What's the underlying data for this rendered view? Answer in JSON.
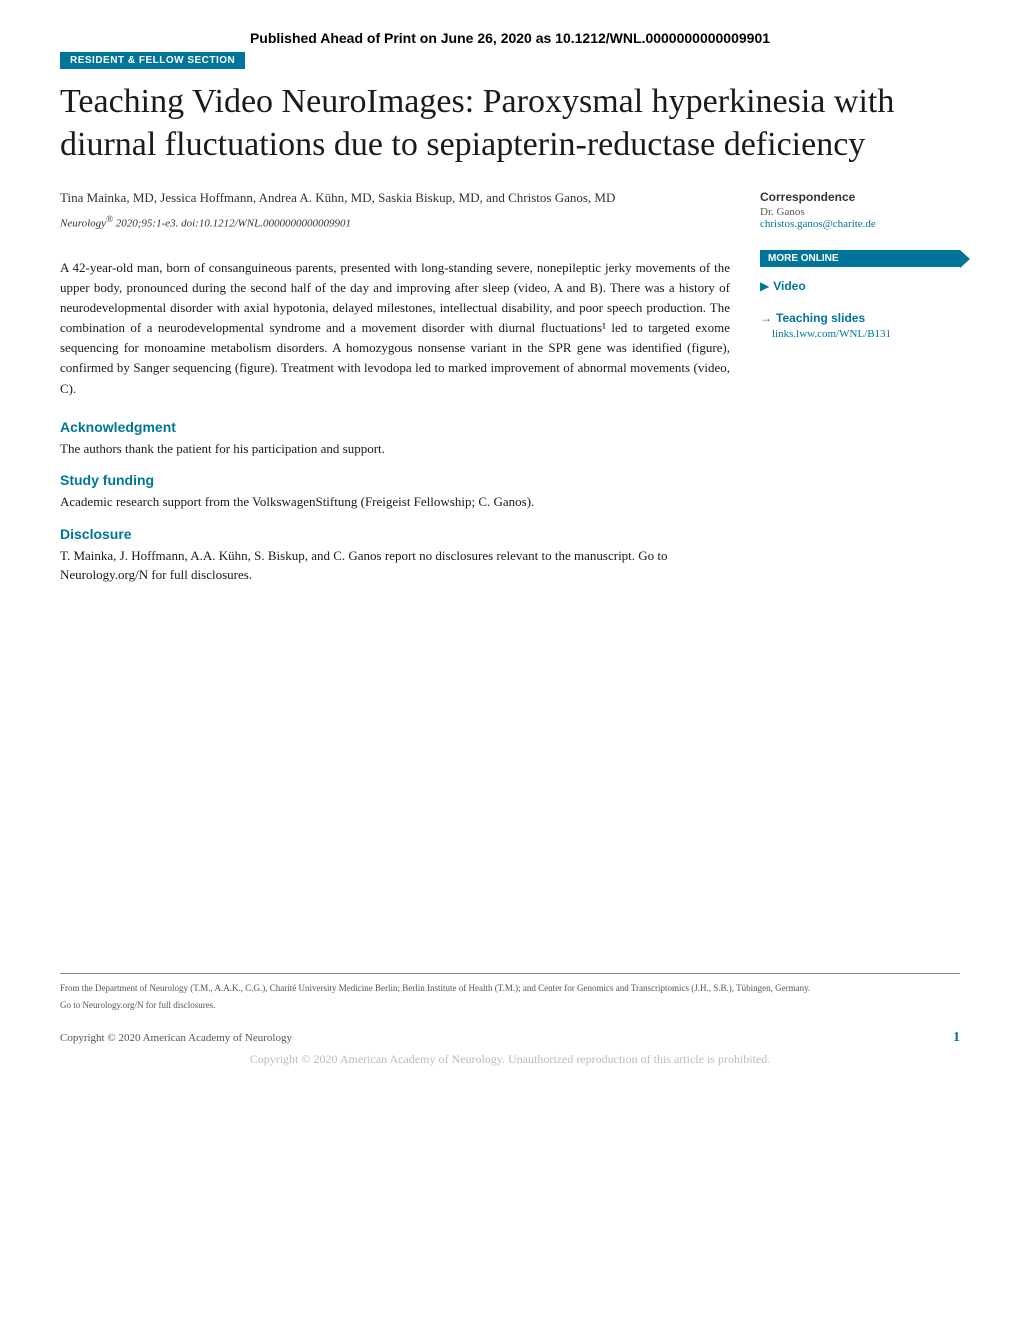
{
  "header": {
    "publish_note": "Published Ahead of Print on June 26, 2020 as 10.1212/WNL.0000000000009901",
    "section_badge": "RESIDENT & FELLOW SECTION"
  },
  "title": "Teaching Video NeuroImages: Paroxysmal hyperkinesia with diurnal fluctuations due to sepiapterin-reductase deficiency",
  "authors": "Tina Mainka, MD, Jessica Hoffmann, Andrea A. Kühn, MD, Saskia Biskup, MD, and Christos Ganos, MD",
  "citation": {
    "journal": "Neurology",
    "reg": "®",
    "details": " 2020;95:1-e3. doi:10.1212/WNL.0000000000009901"
  },
  "body": "A 42-year-old man, born of consanguineous parents, presented with long-standing severe, nonepileptic jerky movements of the upper body, pronounced during the second half of the day and improving after sleep (video, A and B). There was a history of neurodevelopmental disorder with axial hypotonia, delayed milestones, intellectual disability, and poor speech production. The combination of a neurodevelopmental syndrome and a movement disorder with diurnal fluctuations¹ led to targeted exome sequencing for monoamine metabolism disorders. A homozygous nonsense variant in the SPR gene was identified (figure), confirmed by Sanger sequencing (figure). Treatment with levodopa led to marked improvement of abnormal movements (video, C).",
  "sections": {
    "ack": {
      "heading": "Acknowledgment",
      "text": "The authors thank the patient for his participation and support."
    },
    "funding": {
      "heading": "Study funding",
      "text": "Academic research support from the VolkswagenStiftung (Freigeist Fellowship; C. Ganos)."
    },
    "disclosure": {
      "heading": "Disclosure",
      "text": "T. Mainka, J. Hoffmann, A.A. Kühn, S. Biskup, and C. Ganos report no disclosures relevant to the manuscript. Go to Neurology.org/N for full disclosures."
    }
  },
  "sidebar": {
    "corr_heading": "Correspondence",
    "corr_name": "Dr. Ganos",
    "corr_email": "christos.ganos@charite.de",
    "more_online": "MORE ONLINE",
    "video_label": "Video",
    "slides_label": "Teaching slides",
    "slides_link": "links.lww.com/WNL/B131"
  },
  "footer": {
    "affiliation": "From the Department of Neurology (T.M., A.A.K., C.G.), Charité University Medicine Berlin; Berlin Institute of Health (T.M.); and Center for Genomics and Transcriptomics (J.H., S.B.), Tübingen, Germany.",
    "disclosure_note": "Go to Neurology.org/N for full disclosures.",
    "copyright": "Copyright © 2020 American Academy of Neurology",
    "page_num": "1",
    "watermark": "Copyright © 2020 American Academy of Neurology. Unauthorized reproduction of this article is prohibited."
  },
  "colors": {
    "brand": "#00759a",
    "text": "#1a1a1a",
    "muted": "#555555",
    "watermark": "#bbbbbb"
  }
}
